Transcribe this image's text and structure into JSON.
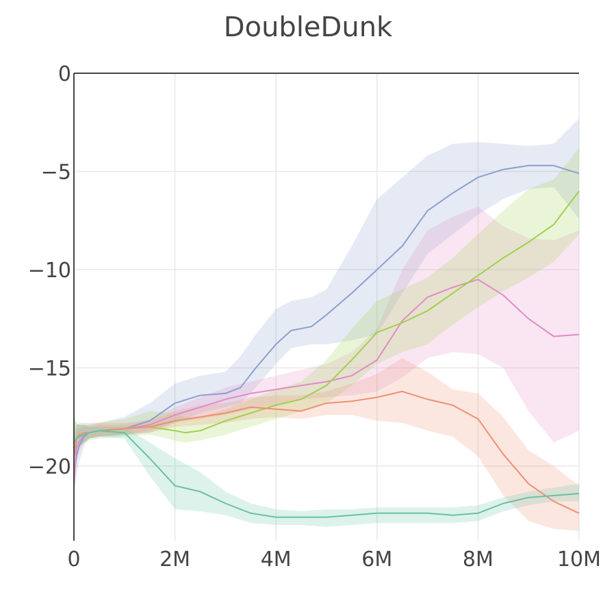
{
  "chart_data": {
    "type": "line",
    "title": "DoubleDunk",
    "xlabel": "",
    "ylabel": "",
    "xlim": [
      0,
      10000000
    ],
    "ylim": [
      -23.8,
      0
    ],
    "x_ticks": [
      {
        "value": 0,
        "label": "0"
      },
      {
        "value": 2000000,
        "label": "2M"
      },
      {
        "value": 4000000,
        "label": "4M"
      },
      {
        "value": 6000000,
        "label": "6M"
      },
      {
        "value": 8000000,
        "label": "8M"
      },
      {
        "value": 10000000,
        "label": "10M"
      }
    ],
    "y_ticks": [
      {
        "value": 0,
        "label": "0"
      },
      {
        "value": -5,
        "label": "−5"
      },
      {
        "value": -10,
        "label": "−10"
      },
      {
        "value": -15,
        "label": "−15"
      },
      {
        "value": -20,
        "label": "−20"
      }
    ],
    "grid": true,
    "series": [
      {
        "name": "blue",
        "color": "#8c9fcf",
        "x": [
          0,
          50000,
          100000,
          200000,
          300000,
          500000,
          1000000,
          1500000,
          2000000,
          2500000,
          3000000,
          3300000,
          3600000,
          4000000,
          4300000,
          4700000,
          5000000,
          5500000,
          6000000,
          6500000,
          7000000,
          7500000,
          8000000,
          8500000,
          9000000,
          9500000,
          10000000
        ],
        "y": [
          -20.5,
          -19.5,
          -19.0,
          -18.5,
          -18.3,
          -18.2,
          -18.1,
          -17.7,
          -16.8,
          -16.4,
          -16.3,
          -16.0,
          -15.0,
          -13.8,
          -13.1,
          -12.9,
          -12.3,
          -11.2,
          -10.0,
          -8.8,
          -7.0,
          -6.1,
          -5.3,
          -4.9,
          -4.7,
          -4.7,
          -5.1
        ],
        "upper": [
          -18.5,
          -18.0,
          -17.8,
          -17.8,
          -17.8,
          -17.8,
          -17.5,
          -16.8,
          -15.8,
          -15.4,
          -15.2,
          -14.4,
          -13.3,
          -12.0,
          -11.6,
          -11.4,
          -11.0,
          -8.8,
          -6.4,
          -5.3,
          -4.2,
          -3.6,
          -3.5,
          -3.6,
          -3.7,
          -3.6,
          -2.3
        ],
        "lower": [
          -21.5,
          -20.5,
          -19.8,
          -19.0,
          -18.6,
          -18.5,
          -18.4,
          -18.3,
          -17.8,
          -17.3,
          -17.0,
          -16.8,
          -16.0,
          -14.8,
          -14.0,
          -13.8,
          -13.8,
          -13.6,
          -13.3,
          -11.2,
          -9.2,
          -8.2,
          -7.2,
          -6.4,
          -5.9,
          -5.8,
          -7.4
        ]
      },
      {
        "name": "pink",
        "color": "#e28bc5",
        "x": [
          0,
          50000,
          100000,
          200000,
          300000,
          500000,
          1000000,
          1500000,
          2000000,
          2500000,
          3000000,
          3500000,
          4000000,
          4500000,
          5000000,
          5500000,
          6000000,
          6500000,
          7000000,
          7500000,
          8000000,
          8500000,
          9000000,
          9500000,
          10000000
        ],
        "y": [
          -21.0,
          -19.0,
          -18.8,
          -18.4,
          -18.3,
          -18.2,
          -18.1,
          -17.9,
          -17.4,
          -17.0,
          -16.6,
          -16.3,
          -16.1,
          -15.9,
          -15.7,
          -15.4,
          -14.6,
          -12.6,
          -11.4,
          -10.9,
          -10.5,
          -11.3,
          -12.5,
          -13.4,
          -13.3
        ],
        "upper": [
          -19.0,
          -18.2,
          -18.1,
          -18.0,
          -18.0,
          -17.9,
          -17.9,
          -17.6,
          -17.0,
          -16.5,
          -16.0,
          -15.7,
          -15.4,
          -15.1,
          -14.8,
          -14.2,
          -13.0,
          -10.0,
          -8.0,
          -7.3,
          -6.8,
          -7.8,
          -8.4,
          -8.5,
          -8.0
        ],
        "lower": [
          -21.5,
          -19.8,
          -19.3,
          -18.8,
          -18.6,
          -18.5,
          -18.4,
          -18.2,
          -17.8,
          -17.6,
          -17.4,
          -17.1,
          -16.9,
          -16.6,
          -16.5,
          -16.4,
          -16.2,
          -15.5,
          -14.5,
          -14.2,
          -14.3,
          -15.0,
          -17.2,
          -18.8,
          -18.2
        ]
      },
      {
        "name": "light-green",
        "color": "#9fd14d",
        "x": [
          0,
          50000,
          100000,
          200000,
          300000,
          500000,
          1000000,
          1500000,
          2000000,
          2200000,
          2500000,
          3000000,
          3500000,
          4000000,
          4500000,
          5000000,
          5500000,
          6000000,
          6500000,
          7000000,
          7500000,
          8000000,
          8500000,
          9000000,
          9500000,
          10000000
        ],
        "y": [
          -18.8,
          -18.6,
          -18.5,
          -18.4,
          -18.3,
          -18.2,
          -18.1,
          -18.0,
          -18.2,
          -18.3,
          -18.2,
          -17.7,
          -17.3,
          -16.9,
          -16.6,
          -15.9,
          -14.6,
          -13.2,
          -12.7,
          -12.1,
          -11.2,
          -10.3,
          -9.4,
          -8.6,
          -7.7,
          -6.0
        ],
        "upper": [
          -17.6,
          -17.8,
          -17.9,
          -17.9,
          -17.9,
          -17.8,
          -17.6,
          -17.2,
          -17.3,
          -17.5,
          -17.5,
          -17.1,
          -16.6,
          -16.1,
          -15.7,
          -14.6,
          -13.0,
          -11.6,
          -11.0,
          -10.4,
          -9.4,
          -8.2,
          -7.0,
          -5.9,
          -5.4,
          -3.8
        ],
        "lower": [
          -19.6,
          -19.2,
          -19.0,
          -18.8,
          -18.7,
          -18.6,
          -18.5,
          -18.4,
          -18.7,
          -18.8,
          -18.7,
          -18.4,
          -18.0,
          -17.6,
          -17.2,
          -16.8,
          -15.9,
          -14.8,
          -14.2,
          -13.8,
          -12.8,
          -11.9,
          -11.1,
          -10.4,
          -9.6,
          -8.2
        ]
      },
      {
        "name": "orange",
        "color": "#ed9072",
        "x": [
          0,
          50000,
          100000,
          200000,
          300000,
          500000,
          1000000,
          1500000,
          2000000,
          2500000,
          3000000,
          3500000,
          4000000,
          4500000,
          5000000,
          5500000,
          6000000,
          6500000,
          7000000,
          7500000,
          8000000,
          8500000,
          9000000,
          9500000,
          10000000
        ],
        "y": [
          -19.5,
          -18.6,
          -18.4,
          -18.3,
          -18.3,
          -18.2,
          -18.1,
          -18.0,
          -17.7,
          -17.5,
          -17.3,
          -17.0,
          -17.1,
          -17.2,
          -16.8,
          -16.7,
          -16.5,
          -16.2,
          -16.6,
          -16.9,
          -17.6,
          -19.4,
          -20.9,
          -21.8,
          -22.4
        ],
        "upper": [
          -18.2,
          -17.9,
          -17.9,
          -17.9,
          -17.9,
          -17.8,
          -17.8,
          -17.7,
          -17.2,
          -16.9,
          -16.8,
          -16.5,
          -16.4,
          -16.4,
          -16.2,
          -15.8,
          -15.3,
          -14.5,
          -15.2,
          -16.1,
          -16.3,
          -17.5,
          -19.2,
          -20.0,
          -21.0
        ],
        "lower": [
          -20.2,
          -19.2,
          -19.0,
          -18.8,
          -18.6,
          -18.5,
          -18.4,
          -18.3,
          -18.0,
          -17.9,
          -17.8,
          -17.6,
          -17.5,
          -17.6,
          -17.4,
          -17.4,
          -17.7,
          -17.8,
          -18.2,
          -18.5,
          -19.5,
          -21.5,
          -22.8,
          -23.2,
          -23.3
        ]
      },
      {
        "name": "teal",
        "color": "#66c2a5",
        "x": [
          0,
          50000,
          100000,
          200000,
          300000,
          500000,
          1000000,
          1500000,
          2000000,
          2500000,
          3000000,
          3500000,
          4000000,
          4500000,
          5000000,
          5500000,
          6000000,
          6500000,
          7000000,
          7500000,
          8000000,
          8500000,
          9000000,
          9500000,
          10000000
        ],
        "y": [
          -18.8,
          -18.6,
          -18.5,
          -18.4,
          -18.3,
          -18.2,
          -18.3,
          -19.6,
          -21.0,
          -21.3,
          -21.9,
          -22.4,
          -22.6,
          -22.6,
          -22.6,
          -22.5,
          -22.4,
          -22.4,
          -22.4,
          -22.5,
          -22.4,
          -21.9,
          -21.6,
          -21.5,
          -21.4
        ],
        "upper": [
          -17.4,
          -17.8,
          -17.9,
          -17.9,
          -18.0,
          -18.0,
          -18.0,
          -18.8,
          -19.6,
          -20.3,
          -21.3,
          -21.9,
          -22.2,
          -22.3,
          -22.2,
          -22.2,
          -22.1,
          -22.1,
          -22.1,
          -22.1,
          -22.0,
          -21.6,
          -21.3,
          -21.1,
          -20.9
        ],
        "lower": [
          -19.8,
          -19.2,
          -19.0,
          -18.8,
          -18.6,
          -18.5,
          -18.6,
          -20.5,
          -22.2,
          -22.3,
          -22.5,
          -22.9,
          -23.0,
          -23.0,
          -23.1,
          -23.0,
          -22.9,
          -22.9,
          -22.9,
          -22.9,
          -22.8,
          -22.3,
          -22.0,
          -21.8,
          -21.8
        ]
      }
    ]
  }
}
